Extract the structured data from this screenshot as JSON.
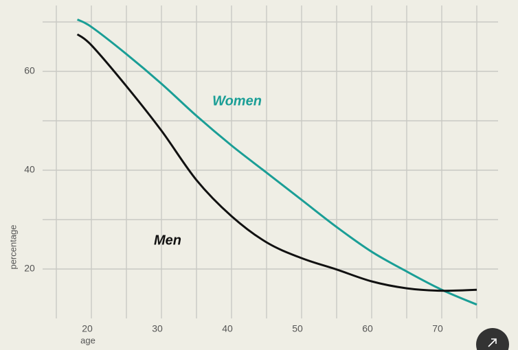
{
  "chart_data": {
    "type": "line",
    "x_label": "age",
    "y_label": "percentage",
    "series": [
      {
        "name": "Women",
        "color": "#1a9e96",
        "x": [
          18,
          20,
          25,
          30,
          35,
          40,
          45,
          50,
          55,
          60,
          65,
          70,
          75
        ],
        "values": [
          70.5,
          69,
          63.5,
          57.5,
          51,
          45,
          39.5,
          34,
          28.5,
          23.5,
          19.5,
          15.8,
          12.8
        ]
      },
      {
        "name": "Men",
        "color": "#111111",
        "x": [
          18,
          20,
          25,
          30,
          35,
          40,
          45,
          50,
          55,
          60,
          65,
          70,
          75
        ],
        "values": [
          67.5,
          65.3,
          57,
          48,
          38,
          30.7,
          25.4,
          22.2,
          19.9,
          17.5,
          16.1,
          15.6,
          15.8
        ]
      }
    ],
    "xlim": [
      15,
      75
    ],
    "ylim": [
      10,
      73
    ],
    "xticks": [
      20,
      30,
      40,
      50,
      60,
      70
    ],
    "yticks": [
      20,
      40,
      60
    ],
    "xminor": [
      15,
      25,
      35,
      45,
      55,
      65,
      75
    ],
    "yminor": [
      30,
      50,
      70
    ],
    "grid": true
  }
}
